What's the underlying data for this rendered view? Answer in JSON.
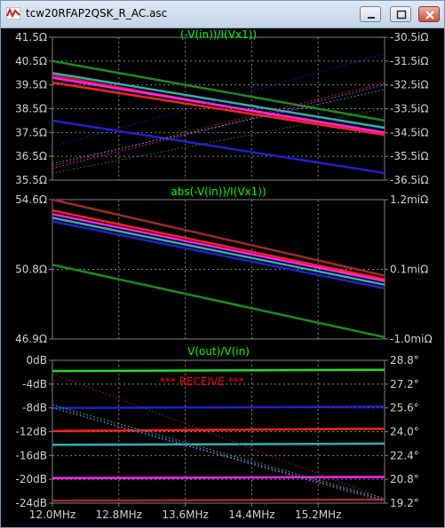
{
  "window": {
    "title": "tcw20RFAP2QSK_R_AC.asc"
  },
  "colors": {
    "background": "#000000",
    "grid": "#808080",
    "text": "#d0d0d0",
    "title": "#00ff00",
    "annotation": "#ff0000"
  },
  "chart_data": [
    {
      "type": "line",
      "title": "(-V(in))/I(Vx1))",
      "x": [
        12.0,
        16.0
      ],
      "xlim": [
        12.0,
        16.0
      ],
      "left_axis": {
        "ticks": [
          "41.5Ω",
          "40.5Ω",
          "39.5Ω",
          "38.5Ω",
          "37.5Ω",
          "36.5Ω",
          "35.5Ω"
        ],
        "ylim": [
          35.5,
          41.5
        ]
      },
      "right_axis": {
        "ticks": [
          "-30.5iΩ",
          "-31.5iΩ",
          "-32.5iΩ",
          "-33.5iΩ",
          "-34.5iΩ",
          "-35.5iΩ",
          "-36.5iΩ"
        ],
        "ylim": [
          -36.5,
          -30.5
        ]
      },
      "series": [
        {
          "color": "#1c8c1c",
          "axis": "left",
          "style": "solid",
          "values": [
            40.5,
            38.0
          ]
        },
        {
          "color": "#c02020",
          "axis": "left",
          "style": "solid",
          "values": [
            39.9,
            37.4
          ]
        },
        {
          "color": "#ff2020",
          "axis": "left",
          "style": "solid",
          "values": [
            39.6,
            37.4
          ]
        },
        {
          "color": "#ff20ff",
          "axis": "left",
          "style": "solid",
          "values": [
            39.8,
            37.5
          ]
        },
        {
          "color": "#30b0b0",
          "axis": "left",
          "style": "solid",
          "values": [
            40.0,
            37.7
          ]
        },
        {
          "color": "#2020d0",
          "axis": "left",
          "style": "solid",
          "values": [
            38.0,
            35.8
          ]
        },
        {
          "color": "#2020d0",
          "axis": "right",
          "style": "dotted",
          "values": [
            -35.1,
            -31.2
          ]
        },
        {
          "color": "#ff2020",
          "axis": "right",
          "style": "dotted",
          "values": [
            -35.9,
            -32.4
          ]
        },
        {
          "color": "#ff20ff",
          "axis": "right",
          "style": "dotted",
          "values": [
            -36.0,
            -32.5
          ]
        },
        {
          "color": "#30b0b0",
          "axis": "right",
          "style": "dotted",
          "values": [
            -35.8,
            -32.7
          ]
        },
        {
          "color": "#1c8c1c",
          "axis": "right",
          "style": "dotted",
          "values": [
            -36.2,
            -33.5
          ]
        }
      ]
    },
    {
      "type": "line",
      "title": "abs(-V(in))/I(Vx1))",
      "x": [
        12.0,
        16.0
      ],
      "xlim": [
        12.0,
        16.0
      ],
      "left_axis": {
        "ticks": [
          "54.6Ω",
          "50.8Ω",
          "46.9Ω"
        ],
        "ylim": [
          46.9,
          54.6
        ]
      },
      "right_axis": {
        "ticks": [
          "1.2miΩ",
          "0.1miΩ",
          "-1.0miΩ"
        ],
        "ylim": [
          -1.0,
          1.2
        ]
      },
      "series": [
        {
          "color": "#a02828",
          "axis": "left",
          "style": "solid",
          "values": [
            54.6,
            50.4
          ]
        },
        {
          "color": "#ff2020",
          "axis": "left",
          "style": "solid",
          "values": [
            54.0,
            50.2
          ]
        },
        {
          "color": "#ff20ff",
          "axis": "left",
          "style": "solid",
          "values": [
            53.8,
            50.1
          ]
        },
        {
          "color": "#30b0b0",
          "axis": "left",
          "style": "solid",
          "values": [
            53.6,
            49.9
          ]
        },
        {
          "color": "#2020d0",
          "axis": "left",
          "style": "solid",
          "values": [
            53.4,
            49.7
          ]
        },
        {
          "color": "#1c8c1c",
          "axis": "left",
          "style": "solid",
          "values": [
            51.0,
            47.0
          ]
        }
      ]
    },
    {
      "type": "line",
      "title": "V(out)/V(in)",
      "annotation": "*** RECEIVE ***",
      "x": [
        12.0,
        16.0
      ],
      "xlim": [
        12.0,
        16.0
      ],
      "x_ticks": [
        "12.0MHz",
        "12.8MHz",
        "13.6MHz",
        "14.4MHz",
        "15.2MHz"
      ],
      "left_axis": {
        "ticks": [
          "0dB",
          "-4dB",
          "-8dB",
          "-12dB",
          "-16dB",
          "-20dB",
          "-24dB"
        ],
        "ylim": [
          -24,
          0
        ]
      },
      "right_axis": {
        "ticks": [
          "28.8°",
          "27.2°",
          "25.6°",
          "24.0°",
          "22.4°",
          "20.8°",
          "19.2°"
        ],
        "ylim": [
          19.2,
          28.8
        ]
      },
      "series": [
        {
          "color": "#20e020",
          "axis": "left",
          "style": "solid",
          "values": [
            -1.8,
            -1.6
          ]
        },
        {
          "color": "#2020d0",
          "axis": "left",
          "style": "solid",
          "values": [
            -8.0,
            -7.8
          ]
        },
        {
          "color": "#ff2020",
          "axis": "left",
          "style": "solid",
          "values": [
            -11.9,
            -11.5
          ]
        },
        {
          "color": "#30b0b0",
          "axis": "left",
          "style": "solid",
          "values": [
            -14.2,
            -14.0
          ]
        },
        {
          "color": "#ff20ff",
          "axis": "left",
          "style": "solid",
          "values": [
            -19.8,
            -19.6
          ]
        },
        {
          "color": "#a02828",
          "axis": "left",
          "style": "solid",
          "values": [
            -23.6,
            -23.4
          ]
        },
        {
          "color": "#a02828",
          "axis": "right",
          "style": "dotted",
          "values": [
            27.9,
            19.5
          ]
        },
        {
          "color": "#20e020",
          "axis": "right",
          "style": "dotted",
          "values": [
            25.8,
            19.5
          ]
        },
        {
          "color": "#2020d0",
          "axis": "right",
          "style": "dotted",
          "values": [
            25.7,
            19.4
          ]
        },
        {
          "color": "#ff20ff",
          "axis": "right",
          "style": "dotted",
          "values": [
            25.6,
            19.3
          ]
        },
        {
          "color": "#30b0b0",
          "axis": "right",
          "style": "dotted",
          "values": [
            25.6,
            19.4
          ]
        }
      ]
    }
  ]
}
